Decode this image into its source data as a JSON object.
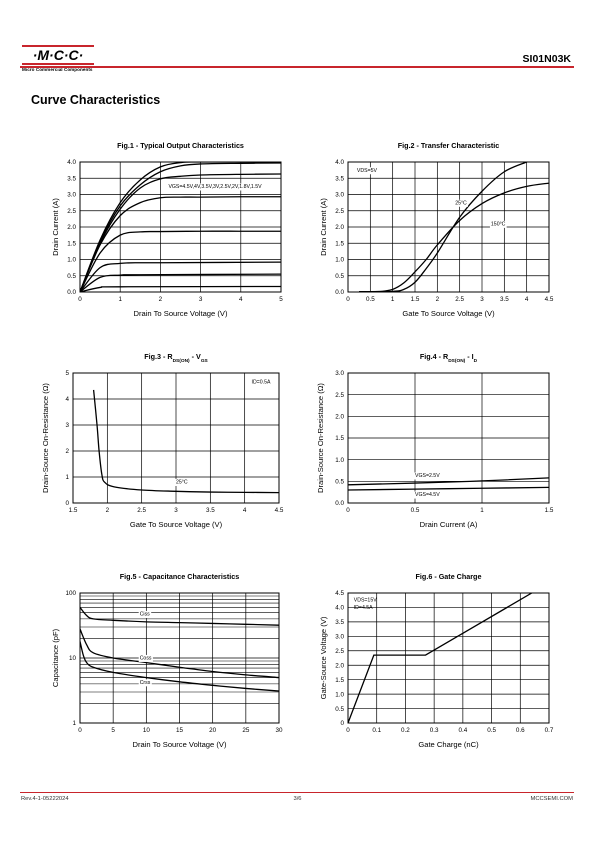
{
  "header": {
    "logo_text": "·M·C·C·",
    "logo_subtitle": "Micro Commercial Components",
    "part_number": "SI01N03K",
    "brand_color": "#c8252c"
  },
  "section_title": "Curve Characteristics",
  "footer": {
    "revision": "Rev.4-1-05222024",
    "page": "3/6",
    "website": "MCCSEMI.COM"
  },
  "chart_data": [
    {
      "id": "fig1",
      "type": "line",
      "title": "Fig.1 - Typical Output Characteristics",
      "xlabel": "Drain To Source Voltage (V)",
      "ylabel": "Drain Current (A)",
      "xlim": [
        0,
        5
      ],
      "ylim": [
        0,
        4
      ],
      "xticks": [
        "0",
        "1",
        "2",
        "3",
        "4",
        "5"
      ],
      "yticks": [
        "0.0",
        "0.5",
        "1.0",
        "1.5",
        "2.0",
        "2.5",
        "3.0",
        "3.5",
        "4.0"
      ],
      "grid": true,
      "annotations": [
        {
          "text": "VGS=4.5V,4V,3.5V,3V,2.5V,2V,1.8V,1.5V",
          "x": 2.2,
          "y": 3.2
        }
      ],
      "series": [
        {
          "values": [
            [
              0,
              0
            ],
            [
              0.5,
              1.6
            ],
            [
              1,
              2.75
            ],
            [
              1.5,
              3.45
            ],
            [
              2,
              3.85
            ],
            [
              2.5,
              3.98
            ],
            [
              3,
              4.0
            ],
            [
              5,
              4.0
            ]
          ]
        },
        {
          "values": [
            [
              0,
              0
            ],
            [
              0.5,
              1.55
            ],
            [
              1,
              2.65
            ],
            [
              1.5,
              3.3
            ],
            [
              2,
              3.7
            ],
            [
              2.5,
              3.88
            ],
            [
              3,
              3.94
            ],
            [
              4,
              3.96
            ],
            [
              5,
              3.97
            ]
          ]
        },
        {
          "values": [
            [
              0,
              0
            ],
            [
              0.5,
              1.5
            ],
            [
              1,
              2.55
            ],
            [
              1.5,
              3.2
            ],
            [
              2,
              3.48
            ],
            [
              2.5,
              3.56
            ],
            [
              3,
              3.6
            ],
            [
              4,
              3.62
            ],
            [
              5,
              3.63
            ]
          ]
        },
        {
          "values": [
            [
              0,
              0
            ],
            [
              0.5,
              1.45
            ],
            [
              1,
              2.35
            ],
            [
              1.5,
              2.75
            ],
            [
              2,
              2.9
            ],
            [
              2.5,
              2.92
            ],
            [
              3,
              2.92
            ],
            [
              4,
              2.93
            ],
            [
              5,
              2.93
            ]
          ]
        },
        {
          "values": [
            [
              0,
              0
            ],
            [
              0.5,
              1.2
            ],
            [
              1,
              1.75
            ],
            [
              1.5,
              1.85
            ],
            [
              2,
              1.86
            ],
            [
              3,
              1.87
            ],
            [
              4,
              1.87
            ],
            [
              5,
              1.87
            ]
          ]
        },
        {
          "values": [
            [
              0,
              0
            ],
            [
              0.5,
              0.75
            ],
            [
              1,
              0.88
            ],
            [
              1.5,
              0.9
            ],
            [
              2,
              0.9
            ],
            [
              5,
              0.92
            ]
          ]
        },
        {
          "values": [
            [
              0,
              0
            ],
            [
              0.5,
              0.45
            ],
            [
              1,
              0.52
            ],
            [
              1.5,
              0.53
            ],
            [
              5,
              0.55
            ]
          ]
        },
        {
          "values": [
            [
              0,
              0
            ],
            [
              0.5,
              0.14
            ],
            [
              1,
              0.16
            ],
            [
              5,
              0.17
            ]
          ]
        }
      ]
    },
    {
      "id": "fig2",
      "type": "line",
      "title": "Fig.2 - Transfer Characteristic",
      "xlabel": "Gate To Source Voltage (V)",
      "ylabel": "Drain Current (A)",
      "xlim": [
        0,
        4.5
      ],
      "ylim": [
        0,
        4
      ],
      "xticks": [
        "0",
        "0.5",
        "1",
        "1.5",
        "2",
        "2.5",
        "3",
        "3.5",
        "4",
        "4.5"
      ],
      "yticks": [
        "0.0",
        "0.5",
        "1.0",
        "1.5",
        "2.0",
        "2.5",
        "3.0",
        "3.5",
        "4.0"
      ],
      "grid": true,
      "annotations": [
        {
          "text": "VDS=5V",
          "x": 0.2,
          "y": 3.7
        },
        {
          "text": "25°C",
          "x": 2.4,
          "y": 2.7
        },
        {
          "text": "150°C",
          "x": 3.2,
          "y": 2.05
        }
      ],
      "series": [
        {
          "name": "25°C",
          "values": [
            [
              0.25,
              0.01
            ],
            [
              1.0,
              0.02
            ],
            [
              1.25,
              0.08
            ],
            [
              1.5,
              0.3
            ],
            [
              1.75,
              0.72
            ],
            [
              2.0,
              1.2
            ],
            [
              2.5,
              2.3
            ],
            [
              3.0,
              3.1
            ],
            [
              3.5,
              3.7
            ],
            [
              4.0,
              4.0
            ]
          ]
        },
        {
          "name": "150°C",
          "values": [
            [
              0.25,
              0.01
            ],
            [
              0.75,
              0.02
            ],
            [
              1.0,
              0.08
            ],
            [
              1.25,
              0.28
            ],
            [
              1.5,
              0.62
            ],
            [
              1.75,
              1.0
            ],
            [
              2.0,
              1.45
            ],
            [
              2.5,
              2.2
            ],
            [
              3.0,
              2.72
            ],
            [
              3.5,
              3.05
            ],
            [
              4.0,
              3.25
            ],
            [
              4.5,
              3.35
            ]
          ]
        }
      ]
    },
    {
      "id": "fig3",
      "type": "line",
      "title": "Fig.3 - RDS(ON) - VGS",
      "title_main": "Fig.3 - R",
      "title_sub1": "DS(ON)",
      "title_mid": " - V",
      "title_sub2": "GS",
      "xlabel": "Gate To Source Voltage (V)",
      "ylabel": "Drain-Source On-Resistance (Ω)",
      "xlim": [
        1.5,
        4.5
      ],
      "ylim": [
        0,
        5
      ],
      "xticks": [
        "1.5",
        "2",
        "2.5",
        "3",
        "3.5",
        "4",
        "4.5"
      ],
      "yticks": [
        "0",
        "1",
        "2",
        "3",
        "4",
        "5"
      ],
      "grid": true,
      "annotations": [
        {
          "text": "ID=0.5A",
          "x": 4.1,
          "y": 4.6
        },
        {
          "text": "25°C",
          "x": 3.0,
          "y": 0.75
        }
      ],
      "series": [
        {
          "name": "25°C",
          "values": [
            [
              1.8,
              4.35
            ],
            [
              1.85,
              3.0
            ],
            [
              1.88,
              2.0
            ],
            [
              1.92,
              1.1
            ],
            [
              1.96,
              0.8
            ],
            [
              2.1,
              0.62
            ],
            [
              2.5,
              0.5
            ],
            [
              3.0,
              0.45
            ],
            [
              3.5,
              0.42
            ],
            [
              4.0,
              0.41
            ],
            [
              4.5,
              0.4
            ]
          ]
        }
      ]
    },
    {
      "id": "fig4",
      "type": "line",
      "title": "Fig.4 - RDS(ON) - ID",
      "title_main": "Fig.4 - R",
      "title_sub1": "DS(ON)",
      "title_mid": " - I",
      "title_sub2": "D",
      "xlabel": "Drain Current (A)",
      "ylabel": "Drain-Source On-Resistance (Ω)",
      "xlim": [
        0,
        1.5
      ],
      "ylim": [
        0,
        3
      ],
      "xticks": [
        "0",
        "0.5",
        "1",
        "1.5"
      ],
      "yticks": [
        "0.0",
        "0.5",
        "1.0",
        "1.5",
        "2.0",
        "2.5",
        "3.0"
      ],
      "grid": true,
      "annotations": [
        {
          "text": "VGS=2.5V",
          "x": 0.5,
          "y": 0.6
        },
        {
          "text": "VGS=4.5V",
          "x": 0.5,
          "y": 0.16
        }
      ],
      "series": [
        {
          "name": "VGS=2.5V",
          "values": [
            [
              0,
              0.42
            ],
            [
              0.5,
              0.46
            ],
            [
              1.0,
              0.51
            ],
            [
              1.5,
              0.58
            ]
          ]
        },
        {
          "name": "VGS=4.5V",
          "values": [
            [
              0,
              0.3
            ],
            [
              0.5,
              0.32
            ],
            [
              1.0,
              0.34
            ],
            [
              1.5,
              0.36
            ]
          ]
        }
      ]
    },
    {
      "id": "fig5",
      "type": "line",
      "title": "Fig.5 - Capacitance Characteristics",
      "xlabel": "Drain To Source Voltage (V)",
      "ylabel": "Capacitance (pF)",
      "xlim": [
        0,
        30
      ],
      "ylim": [
        1,
        100
      ],
      "yscale": "log",
      "xticks": [
        "0",
        "5",
        "10",
        "15",
        "20",
        "25",
        "30"
      ],
      "yticks": [
        "1",
        "10",
        "100"
      ],
      "grid": true,
      "annotations": [
        {
          "text": "Ciss",
          "x": 9,
          "y": 45
        },
        {
          "text": "Coss",
          "x": 9,
          "y": 9.5
        },
        {
          "text": "Crss",
          "x": 9,
          "y": 4.0
        }
      ],
      "series": [
        {
          "name": "Ciss",
          "values": [
            [
              0,
              60
            ],
            [
              1,
              45
            ],
            [
              2,
              40
            ],
            [
              5,
              38
            ],
            [
              10,
              36
            ],
            [
              15,
              35
            ],
            [
              20,
              34
            ],
            [
              25,
              33
            ],
            [
              30,
              32
            ]
          ]
        },
        {
          "name": "Coss",
          "values": [
            [
              0,
              28
            ],
            [
              1,
              16
            ],
            [
              2,
              12
            ],
            [
              5,
              10
            ],
            [
              10,
              8.5
            ],
            [
              15,
              7.2
            ],
            [
              20,
              6.2
            ],
            [
              25,
              5.5
            ],
            [
              30,
              5.0
            ]
          ]
        },
        {
          "name": "Crss",
          "values": [
            [
              0,
              18
            ],
            [
              0.5,
              11
            ],
            [
              1,
              8.5
            ],
            [
              2,
              7.2
            ],
            [
              5,
              6
            ],
            [
              10,
              5
            ],
            [
              15,
              4.3
            ],
            [
              20,
              3.8
            ],
            [
              25,
              3.4
            ],
            [
              30,
              3.1
            ]
          ]
        }
      ]
    },
    {
      "id": "fig6",
      "type": "line",
      "title": "Fig.6 - Gate Charge",
      "xlabel": "Gate Charge (nC)",
      "ylabel": "Gate-Source Voltage (V)",
      "xlim": [
        0,
        0.7
      ],
      "ylim": [
        0,
        4.5
      ],
      "xticks": [
        "0",
        "0.1",
        "0.2",
        "0.3",
        "0.4",
        "0.5",
        "0.6",
        "0.7"
      ],
      "yticks": [
        "0",
        "0.5",
        "1.0",
        "1.5",
        "2.0",
        "2.5",
        "3.0",
        "3.5",
        "4.0",
        "4.5"
      ],
      "grid": true,
      "annotations": [
        {
          "text": "VDS=15V",
          "x": 0.02,
          "y": 4.2
        },
        {
          "text": "ID=4.5A",
          "x": 0.02,
          "y": 3.95
        }
      ],
      "series": [
        {
          "values": [
            [
              0,
              0
            ],
            [
              0.09,
              2.35
            ],
            [
              0.27,
              2.35
            ],
            [
              0.64,
              4.5
            ]
          ]
        }
      ]
    }
  ]
}
